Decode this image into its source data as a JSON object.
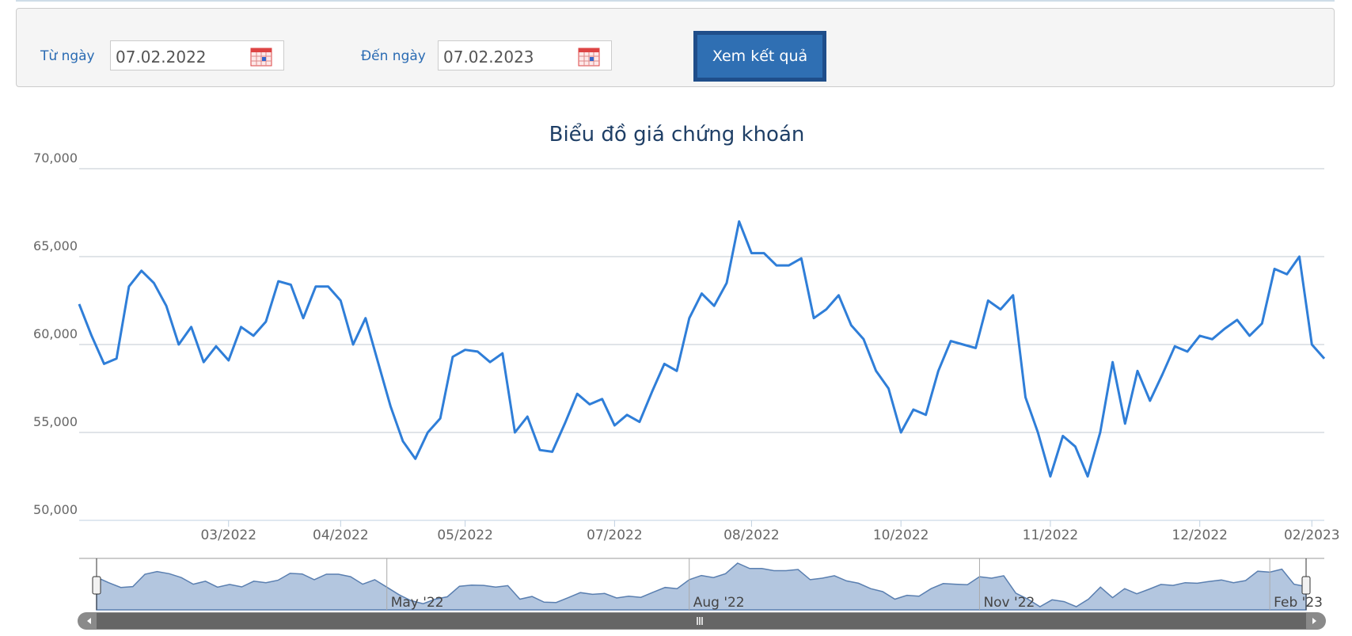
{
  "form": {
    "from_label": "Từ ngày",
    "from_value": "07.02.2022",
    "to_label": "Đến ngày",
    "to_value": "07.02.2023",
    "button": "Xem kết quả"
  },
  "chart_data": {
    "type": "line",
    "title": "Biểu đồ giá chứng khoán",
    "categories": [
      null,
      null,
      null,
      null,
      null,
      null,
      null,
      null,
      null,
      null,
      null,
      null,
      "03/2022",
      null,
      null,
      null,
      null,
      null,
      null,
      null,
      null,
      "04/2022",
      null,
      null,
      null,
      null,
      null,
      null,
      null,
      null,
      null,
      "05/2022",
      null,
      null,
      null,
      null,
      null,
      null,
      null,
      null,
      null,
      null,
      null,
      "07/2022",
      null,
      null,
      null,
      null,
      null,
      null,
      null,
      null,
      null,
      null,
      "08/2022",
      null,
      null,
      null,
      null,
      null,
      null,
      null,
      null,
      null,
      null,
      null,
      "10/2022",
      null,
      null,
      null,
      null,
      null,
      null,
      null,
      null,
      null,
      null,
      null,
      "11/2022",
      null,
      null,
      null,
      null,
      null,
      null,
      null,
      null,
      null,
      null,
      null,
      "12/2022",
      null,
      null,
      null,
      null,
      null,
      null,
      null,
      null,
      "02/2023",
      null
    ],
    "navigator_categories": [
      null,
      null,
      null,
      null,
      null,
      null,
      null,
      null,
      null,
      null,
      null,
      null,
      null,
      null,
      null,
      null,
      null,
      null,
      null,
      null,
      null,
      null,
      null,
      null,
      "May '22",
      null,
      null,
      null,
      null,
      null,
      null,
      null,
      null,
      null,
      null,
      null,
      null,
      null,
      null,
      null,
      null,
      null,
      null,
      null,
      null,
      null,
      null,
      null,
      null,
      "Aug '22",
      null,
      null,
      null,
      null,
      null,
      null,
      null,
      null,
      null,
      null,
      null,
      null,
      null,
      null,
      null,
      null,
      null,
      null,
      null,
      null,
      null,
      null,
      null,
      "Nov '22",
      null,
      null,
      null,
      null,
      null,
      null,
      null,
      null,
      null,
      null,
      null,
      null,
      null,
      null,
      null,
      null,
      null,
      null,
      null,
      null,
      null,
      null,
      null,
      "Feb '23",
      null,
      null,
      null
    ],
    "series": [
      {
        "color": "#2f7ed8",
        "values": [
          62300,
          60500,
          58900,
          59200,
          63300,
          64200,
          63500,
          62200,
          60000,
          61000,
          59000,
          59900,
          59100,
          61000,
          60500,
          61300,
          63600,
          63400,
          61500,
          63300,
          63300,
          62500,
          60000,
          61500,
          59000,
          56500,
          54500,
          53500,
          55000,
          55800,
          59300,
          59700,
          59600,
          59000,
          59500,
          55000,
          55900,
          54000,
          53900,
          55500,
          57200,
          56600,
          56900,
          55400,
          56000,
          55600,
          57300,
          58900,
          58500,
          61500,
          62900,
          62200,
          63500,
          67000,
          65200,
          65200,
          64500,
          64500,
          64900,
          61500,
          62000,
          62800,
          61100,
          60300,
          58500,
          57500,
          55000,
          56300,
          56000,
          58500,
          60200,
          60000,
          59800,
          62500,
          62000,
          62800,
          57000,
          55000,
          52500,
          54800,
          54200,
          52500,
          55000,
          59000,
          55500,
          58500,
          56800,
          58300,
          59900,
          59600,
          60500,
          60300,
          60900,
          61400,
          60500,
          61200,
          64300,
          64000,
          65000,
          60000,
          59200
        ]
      }
    ],
    "ylim": [
      50000,
      70000
    ],
    "yticks": [
      {
        "value": 50000,
        "label": "50,000"
      },
      {
        "value": 55000,
        "label": "55,000"
      },
      {
        "value": 60000,
        "label": "60,000"
      },
      {
        "value": 65000,
        "label": "65,000"
      },
      {
        "value": 70000,
        "label": "70,000"
      }
    ],
    "grid": true
  }
}
